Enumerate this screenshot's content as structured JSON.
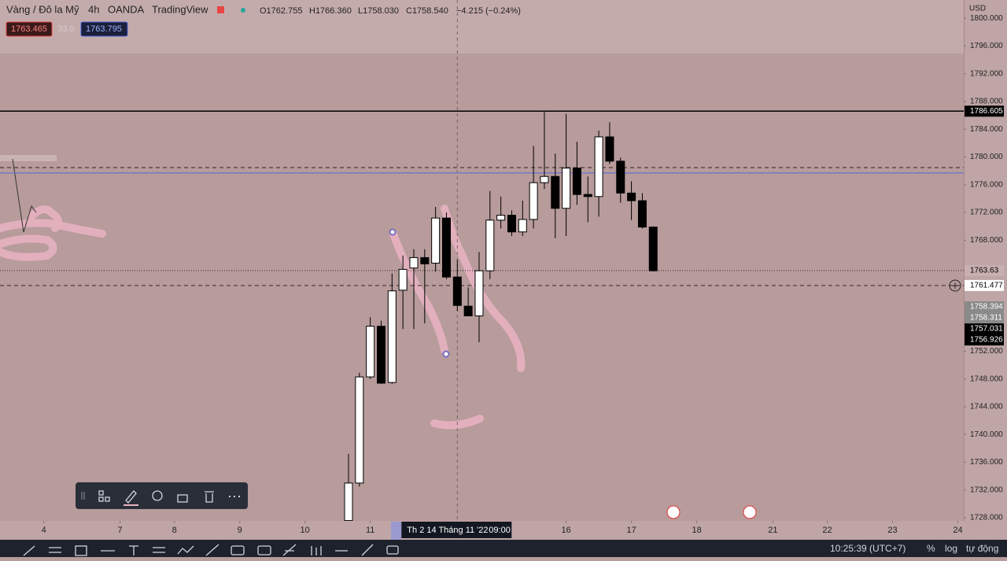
{
  "header": {
    "symbol": "Vàng / Đô la Mỹ",
    "interval": "4h",
    "broker": "OANDA",
    "source": "TradingView",
    "open": "O1762.755",
    "high": "H1766.360",
    "low": "L1758.030",
    "close": "C1758.540",
    "change": "−4.215 (−0.24%)"
  },
  "quote": {
    "bid": "1763.465",
    "spread": "33.0",
    "ask": "1763.795"
  },
  "chart_data": {
    "type": "candlestick",
    "x": [
      0,
      1,
      2,
      3,
      4,
      5,
      6,
      7,
      8,
      9,
      10,
      11,
      12,
      13,
      14,
      15,
      16,
      17,
      18,
      19,
      20,
      21,
      22,
      23,
      24,
      25,
      26,
      27,
      28
    ],
    "open": [
      1727.6,
      1733.0,
      1748.3,
      1755.6,
      1747.5,
      1760.8,
      1764.0,
      1765.5,
      1764.7,
      1771.2,
      1762.7,
      1758.5,
      1757.1,
      1763.6,
      1770.9,
      1771.6,
      1769.2,
      1771.0,
      1776.3,
      1777.2,
      1772.6,
      1778.4,
      1774.6,
      1774.3,
      1782.9,
      1779.4,
      1774.8,
      1773.7,
      1769.9
    ],
    "high": [
      1737.2,
      1748.9,
      1756.9,
      1756.4,
      1763.2,
      1765.8,
      1766.7,
      1766.7,
      1772.8,
      1772.0,
      1765.2,
      1761.2,
      1766.3,
      1775.1,
      1774.3,
      1772.3,
      1773.7,
      1781.6,
      1786.5,
      1780.5,
      1786.2,
      1782.2,
      1777.2,
      1783.8,
      1785.0,
      1779.9,
      1776.5,
      1774.8,
      1770.0
    ],
    "low": [
      1727.5,
      1732.5,
      1748.0,
      1747.3,
      1747.3,
      1755.2,
      1755.2,
      1756.0,
      1763.5,
      1762.4,
      1757.8,
      1757.1,
      1753.3,
      1762.4,
      1769.7,
      1768.6,
      1768.6,
      1769.7,
      1775.4,
      1768.3,
      1768.6,
      1773.1,
      1770.6,
      1771.4,
      1779.0,
      1773.4,
      1770.9,
      1769.7,
      1763.5
    ],
    "close": [
      1733.0,
      1748.3,
      1755.6,
      1747.4,
      1760.7,
      1763.8,
      1765.5,
      1764.6,
      1771.2,
      1762.7,
      1758.6,
      1757.1,
      1763.6,
      1770.9,
      1771.6,
      1769.2,
      1771.0,
      1776.3,
      1777.2,
      1772.6,
      1778.4,
      1774.6,
      1774.3,
      1782.9,
      1779.4,
      1774.8,
      1773.7,
      1769.9,
      1763.6
    ],
    "up_color": "#ffffff",
    "down_color": "#000000",
    "xlim": [
      -32.03,
      56.54
    ],
    "xticks": [
      {
        "value": -28,
        "label": "4"
      },
      {
        "value": -21,
        "label": "7"
      },
      {
        "value": -16,
        "label": "8"
      },
      {
        "value": -10,
        "label": "9"
      },
      {
        "value": -4,
        "label": "10"
      },
      {
        "value": 2,
        "label": "11"
      },
      {
        "value": 20,
        "label": "16"
      },
      {
        "value": 26,
        "label": "17"
      },
      {
        "value": 32,
        "label": "18"
      },
      {
        "value": 39,
        "label": "21"
      },
      {
        "value": 44,
        "label": "22"
      },
      {
        "value": 50,
        "label": "23"
      },
      {
        "value": 56,
        "label": "24"
      }
    ],
    "ylim": [
      1727.55,
      1802.63
    ],
    "yticks": [
      {
        "value": 1800,
        "label": "1800.000"
      },
      {
        "value": 1796,
        "label": "1796.000"
      },
      {
        "value": 1792,
        "label": "1792.000"
      },
      {
        "value": 1788,
        "label": "1788.000"
      },
      {
        "value": 1784,
        "label": "1784.000"
      },
      {
        "value": 1780,
        "label": "1780.000"
      },
      {
        "value": 1776,
        "label": "1776.000"
      },
      {
        "value": 1772,
        "label": "1772.000"
      },
      {
        "value": 1768,
        "label": "1768.000"
      },
      {
        "value": 1752,
        "label": "1752.000"
      },
      {
        "value": 1748,
        "label": "1748.000"
      },
      {
        "value": 1744,
        "label": "1744.000"
      },
      {
        "value": 1740,
        "label": "1740.000"
      },
      {
        "value": 1736,
        "label": "1736.000"
      },
      {
        "value": 1732,
        "label": "1732.000"
      },
      {
        "value": 1728,
        "label": "1728.000"
      }
    ],
    "currency": "USD",
    "lines": [
      {
        "value": 1777.7,
        "color": "#5b6fd6",
        "style": "solid"
      },
      {
        "value": 1778.47,
        "color": "#4a3a3a",
        "style": "dashed"
      }
    ],
    "price_tags": [
      {
        "value": 1786.605,
        "bg": "#000000",
        "fg": "#ffffff",
        "line": "solid"
      },
      {
        "value": 1763.63,
        "bg": "#c9b0b0",
        "fg": "#000000",
        "line": "dotted"
      },
      {
        "value": 1761.477,
        "bg": "#ffffff",
        "fg": "#000000",
        "line": "dashed"
      },
      {
        "value": 1758.394,
        "bg": "#8a8a8a",
        "fg": "#ffffff"
      },
      {
        "value": 1758.311,
        "bg": "#8a8a8a",
        "fg": "#ffffff"
      },
      {
        "value": 1757.031,
        "bg": "#000000",
        "fg": "#ffffff"
      },
      {
        "value": 1756.926,
        "bg": "#000000",
        "fg": "#ffffff"
      }
    ],
    "crosshair": {
      "x": 10,
      "label": "Th 2 14 Tháng 11 '22",
      "time": "09:00"
    }
  },
  "status": {
    "time": "10:25:39 (UTC+7)",
    "percent": "%",
    "log": "log",
    "auto": "tự động"
  }
}
